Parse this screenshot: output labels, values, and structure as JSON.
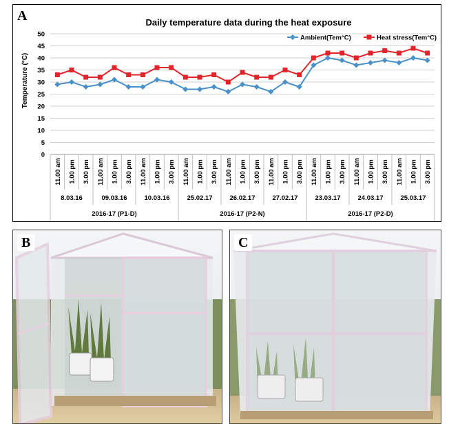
{
  "panel_labels": {
    "a": "A",
    "b": "B",
    "c": "C"
  },
  "colors": {
    "ambient": "#4a90c8",
    "heat": "#e0262b",
    "grid": "#d0d0d0"
  },
  "chart_data": {
    "type": "line",
    "title": "Daily temperature data during the heat exposure",
    "ylabel": "Temperature (°C)",
    "xlabel": "",
    "ylim": [
      0,
      50
    ],
    "yticks": [
      0,
      5,
      10,
      15,
      20,
      25,
      30,
      35,
      40,
      45,
      50
    ],
    "grid": "horizontal",
    "legend_position": "top-right",
    "x": [
      "11.00 am",
      "1.00 pm",
      "3.00 pm",
      "11.00 am",
      "1.00 pm",
      "3.00 pm",
      "11.00 am",
      "1.00 pm",
      "3.00 pm",
      "11.00 am",
      "1.00 pm",
      "3.00 pm",
      "11.00 am",
      "1.00 pm",
      "3.00 pm",
      "11.00 am",
      "1.00 pm",
      "3.00 pm",
      "11.00 am",
      "1.00 pm",
      "3.00 pm",
      "11.00 am",
      "1.00 pm",
      "3.00 pm",
      "11.00 am",
      "1.00 pm",
      "3.00 pm"
    ],
    "dates": [
      "8.03.16",
      "09.03.16",
      "10.03.16",
      "25.02.17",
      "26.02.17",
      "27.02.17",
      "23.03.17",
      "24.03.17",
      "25.03.17"
    ],
    "periods": [
      "2016-17 (P1-D)",
      "2016-17 (P2-N)",
      "2016-17 (P2-D)"
    ],
    "series": [
      {
        "name": "Ambient(Tem°C)",
        "marker": "diamond",
        "values": [
          29,
          30,
          28,
          29,
          31,
          28,
          28,
          31,
          30,
          27,
          27,
          28,
          26,
          29,
          28,
          26,
          30,
          28,
          37,
          40,
          39,
          37,
          38,
          39,
          38,
          40,
          39
        ]
      },
      {
        "name": "Heat stress(Tem°C)",
        "marker": "square",
        "values": [
          33,
          35,
          32,
          32,
          36,
          33,
          33,
          36,
          36,
          32,
          32,
          33,
          30,
          34,
          32,
          32,
          35,
          33,
          40,
          42,
          42,
          40,
          42,
          43,
          42,
          44,
          42
        ]
      }
    ]
  }
}
